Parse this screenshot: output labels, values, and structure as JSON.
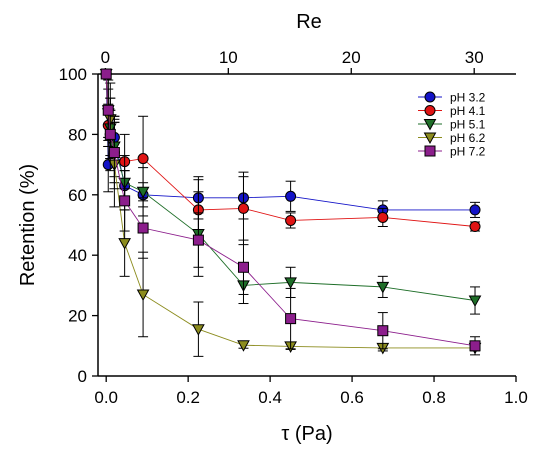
{
  "chart_data": {
    "type": "scatter",
    "xlabel": "τ (Pa)",
    "x2label": "Re",
    "ylabel": "Retention (%)",
    "xlim": [
      -0.02,
      1.0
    ],
    "ylim": [
      0,
      100
    ],
    "x2lim": [
      -0.6,
      33.4
    ],
    "xticks": [
      "0.0",
      "0.2",
      "0.4",
      "0.6",
      "0.8",
      "1.0"
    ],
    "x2ticks": [
      "0",
      "10",
      "20",
      "30"
    ],
    "yticks": [
      "0",
      "20",
      "40",
      "60",
      "80",
      "100"
    ],
    "grid": false,
    "legend_position": "top-right",
    "series": [
      {
        "name": "pH 3.2",
        "color": "#1414c8",
        "marker": "circle",
        "x": [
          0.0,
          0.005,
          0.01,
          0.02,
          0.045,
          0.09,
          0.225,
          0.335,
          0.45,
          0.675,
          0.9
        ],
        "y": [
          100,
          70,
          80,
          79,
          63,
          60,
          59,
          59,
          59.5,
          55,
          55
        ],
        "err": [
          0,
          9,
          8,
          6,
          5,
          4,
          7,
          7,
          5,
          3,
          2.5
        ]
      },
      {
        "name": "pH 4.1",
        "color": "#e01414",
        "marker": "circle",
        "x": [
          0.0,
          0.005,
          0.01,
          0.02,
          0.045,
          0.09,
          0.225,
          0.335,
          0.45,
          0.675,
          0.9
        ],
        "y": [
          100,
          83,
          80,
          74,
          71,
          72,
          55,
          55.5,
          51.5,
          52.5,
          49.5
        ],
        "err": [
          0,
          7,
          8,
          10,
          9,
          14,
          10,
          12,
          2.5,
          3,
          1.5
        ]
      },
      {
        "name": "pH 5.1",
        "color": "#1e6e28",
        "marker": "triangle-down",
        "x": [
          0.0,
          0.005,
          0.01,
          0.02,
          0.045,
          0.09,
          0.225,
          0.335,
          0.45,
          0.675,
          0.9
        ],
        "y": [
          100,
          87,
          82,
          76,
          64,
          61,
          47,
          30,
          31,
          29.5,
          25
        ],
        "err": [
          0,
          8,
          10,
          10,
          9,
          8,
          14,
          6,
          5,
          3.5,
          4.5
        ]
      },
      {
        "name": "pH 6.2",
        "color": "#8c8c1e",
        "marker": "triangle-down",
        "x": [
          0.0,
          0.005,
          0.01,
          0.02,
          0.045,
          0.09,
          0.225,
          0.335,
          0.45,
          0.675,
          0.9
        ],
        "y": [
          100,
          88,
          85,
          70,
          44,
          27,
          15.5,
          10.2,
          9.8,
          9.3,
          9.3
        ],
        "err": [
          0,
          10,
          12,
          14,
          11,
          14,
          9,
          1,
          1,
          1,
          1
        ]
      },
      {
        "name": "pH 7.2",
        "color": "#8c1e8c",
        "marker": "square",
        "x": [
          0.0,
          0.005,
          0.01,
          0.02,
          0.045,
          0.09,
          0.225,
          0.335,
          0.45,
          0.675,
          0.9
        ],
        "y": [
          100,
          88,
          80,
          74,
          58,
          49,
          45,
          36,
          19,
          15,
          10
        ],
        "err": [
          0,
          12,
          12,
          12,
          10,
          10,
          9,
          9,
          10,
          6,
          3
        ]
      }
    ]
  }
}
